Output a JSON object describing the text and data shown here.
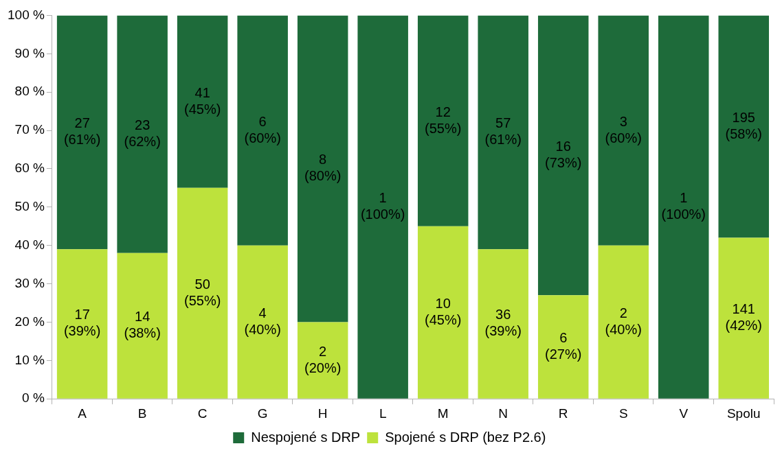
{
  "chart_data": {
    "type": "bar",
    "stacked": true,
    "categories": [
      "A",
      "B",
      "C",
      "G",
      "H",
      "L",
      "M",
      "N",
      "R",
      "S",
      "V",
      "Spolu"
    ],
    "series": [
      {
        "name": "Spojené s DRP (bez P2.6)",
        "color": "#bde23c",
        "values": [
          39,
          38,
          55,
          40,
          20,
          0,
          45,
          39,
          27,
          40,
          0,
          42
        ],
        "value_labels": [
          "17 (39%)",
          "14 (38%)",
          "50 (55%)",
          "4 (40%)",
          "2 (20%)",
          null,
          "10 (45%)",
          "36 (39%)",
          "6 (27%)",
          "2 (40%)",
          null,
          "141 (42%)"
        ]
      },
      {
        "name": "Nespojené s DRP",
        "color": "#1e6b3a",
        "values": [
          61,
          62,
          45,
          60,
          80,
          100,
          55,
          61,
          73,
          60,
          100,
          58
        ],
        "value_labels": [
          "27 (61%)",
          "23 (62%)",
          "41 (45%)",
          "6 (60%)",
          "8 (80%)",
          "1 (100%)",
          "12 (55%)",
          "57 (61%)",
          "16 (73%)",
          "3 (60%)",
          "1 (100%)",
          "195 (58%)"
        ]
      }
    ],
    "ylim": [
      0,
      100
    ],
    "yticks": [
      {
        "value": 0,
        "label": "0 %"
      },
      {
        "value": 10,
        "label": "10 %"
      },
      {
        "value": 20,
        "label": "20 %"
      },
      {
        "value": 30,
        "label": "30 %"
      },
      {
        "value": 40,
        "label": "40 %"
      },
      {
        "value": 50,
        "label": "50 %"
      },
      {
        "value": 60,
        "label": "60 %"
      },
      {
        "value": 70,
        "label": "70 %"
      },
      {
        "value": 80,
        "label": "80 %"
      },
      {
        "value": 90,
        "label": "90 %"
      },
      {
        "value": 100,
        "label": "100 %"
      }
    ],
    "legend": "bottom"
  }
}
